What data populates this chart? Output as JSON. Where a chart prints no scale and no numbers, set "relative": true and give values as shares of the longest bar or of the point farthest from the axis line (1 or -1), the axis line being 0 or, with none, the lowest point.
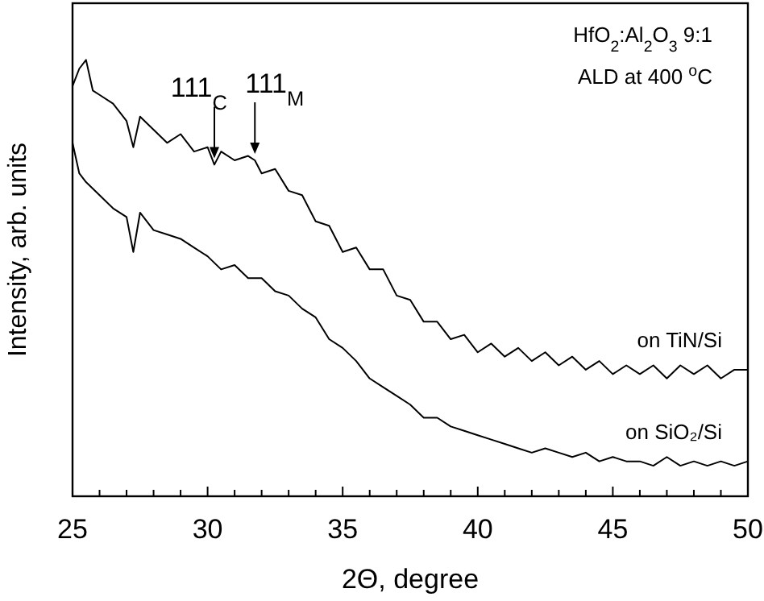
{
  "chart_data": {
    "type": "line",
    "relative": true,
    "xlabel": "2Θ, degree",
    "ylabel": "Intensity, arb. units",
    "xlim": [
      25,
      50
    ],
    "xticks": [
      25,
      30,
      35,
      40,
      45,
      50
    ],
    "series": [
      {
        "name": "on TiN/Si",
        "color": "#000000",
        "x": [
          25,
          25.25,
          25.5,
          25.75,
          26,
          26.5,
          27,
          27.25,
          27.5,
          28,
          28.5,
          29,
          29.5,
          30,
          30.25,
          30.5,
          31,
          31.5,
          31.75,
          32,
          32.5,
          33,
          33.5,
          34,
          34.5,
          35,
          35.5,
          36,
          36.5,
          37,
          37.5,
          38,
          38.5,
          39,
          39.5,
          40,
          40.5,
          41,
          41.5,
          42,
          42.5,
          43,
          43.5,
          44,
          44.5,
          45,
          45.5,
          46,
          46.5,
          47,
          47.5,
          48,
          48.5,
          49,
          49.5,
          50
        ],
        "values": [
          0.94,
          0.98,
          1.0,
          0.93,
          0.92,
          0.9,
          0.86,
          0.8,
          0.87,
          0.84,
          0.81,
          0.83,
          0.79,
          0.8,
          0.76,
          0.79,
          0.77,
          0.78,
          0.77,
          0.74,
          0.75,
          0.7,
          0.69,
          0.63,
          0.62,
          0.56,
          0.57,
          0.52,
          0.52,
          0.46,
          0.45,
          0.4,
          0.4,
          0.36,
          0.37,
          0.33,
          0.35,
          0.32,
          0.34,
          0.31,
          0.33,
          0.3,
          0.32,
          0.29,
          0.31,
          0.28,
          0.3,
          0.28,
          0.3,
          0.27,
          0.3,
          0.28,
          0.3,
          0.27,
          0.29,
          0.29
        ]
      },
      {
        "name": "on SiO₂/Si",
        "color": "#000000",
        "x": [
          25,
          25.25,
          25.5,
          26,
          26.5,
          27,
          27.25,
          27.5,
          28,
          28.5,
          29,
          29.5,
          30,
          30.5,
          31,
          31.5,
          32,
          32.5,
          33,
          33.5,
          34,
          34.5,
          35,
          35.5,
          36,
          36.5,
          37,
          37.5,
          38,
          38.5,
          39,
          39.5,
          40,
          40.5,
          41,
          41.5,
          42,
          42.5,
          43,
          43.5,
          44,
          44.5,
          45,
          45.5,
          46,
          46.5,
          47,
          47.5,
          48,
          48.5,
          49,
          49.5,
          50
        ],
        "values": [
          0.81,
          0.74,
          0.72,
          0.69,
          0.66,
          0.64,
          0.56,
          0.65,
          0.61,
          0.6,
          0.59,
          0.57,
          0.55,
          0.52,
          0.53,
          0.5,
          0.5,
          0.47,
          0.46,
          0.43,
          0.41,
          0.36,
          0.34,
          0.31,
          0.27,
          0.25,
          0.23,
          0.21,
          0.18,
          0.18,
          0.16,
          0.15,
          0.14,
          0.13,
          0.12,
          0.11,
          0.1,
          0.11,
          0.1,
          0.09,
          0.1,
          0.08,
          0.09,
          0.08,
          0.08,
          0.07,
          0.09,
          0.07,
          0.08,
          0.07,
          0.08,
          0.07,
          0.08
        ]
      }
    ],
    "annotations": [
      "HfO$_{2}$:Al$_{2}$O$_{3}$ 9:1",
      "ALD at 400 $^{o}$C",
      {
        "text": "111$_{C}$",
        "x": 30.25,
        "y": 0.76
      },
      {
        "text": "111$_{M}$",
        "x": 31.75,
        "y": 0.77
      }
    ]
  }
}
